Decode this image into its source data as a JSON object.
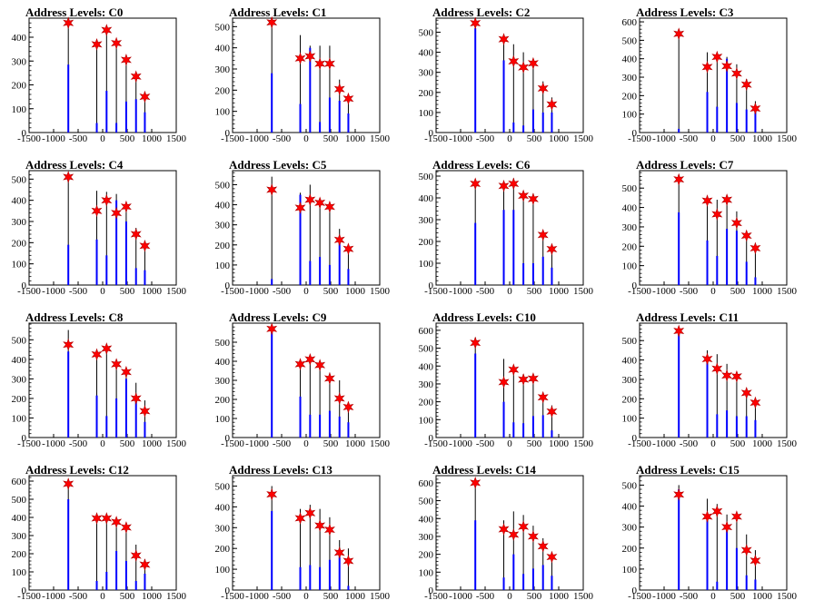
{
  "chart_data": [
    {
      "type": "bar",
      "title": "Address Levels: C0",
      "xlim": [
        -1500,
        1500
      ],
      "ylim": [
        0,
        480
      ],
      "x_ticks": [
        -1500,
        -1000,
        -500,
        0,
        500,
        1000,
        1500
      ],
      "y_ticks": [
        0,
        100,
        200,
        300,
        400
      ],
      "peaks": [
        -700,
        -120,
        80,
        280,
        480,
        680,
        860
      ],
      "bars": [
        [
          -700,
          460,
          285
        ],
        [
          -120,
          380,
          40
        ],
        [
          80,
          430,
          175
        ],
        [
          280,
          370,
          40
        ],
        [
          480,
          310,
          130
        ],
        [
          680,
          245,
          140
        ],
        [
          860,
          160,
          85
        ]
      ],
      "markers": [
        460,
        370,
        430,
        375,
        305,
        235,
        150
      ]
    },
    {
      "type": "bar",
      "title": "Address Levels: C1",
      "xlim": [
        -1500,
        1500
      ],
      "ylim": [
        0,
        540
      ],
      "x_ticks": [
        -1500,
        -1000,
        -500,
        0,
        500,
        1000,
        1500
      ],
      "y_ticks": [
        0,
        100,
        200,
        300,
        400,
        500
      ],
      "peaks": [
        -700,
        -120,
        80,
        280,
        480,
        680,
        860
      ],
      "bars": [
        [
          -700,
          520,
          280
        ],
        [
          -120,
          460,
          135
        ],
        [
          80,
          410,
          400
        ],
        [
          280,
          410,
          50
        ],
        [
          480,
          410,
          165
        ],
        [
          680,
          250,
          150
        ],
        [
          860,
          170,
          90
        ]
      ],
      "markers": [
        520,
        350,
        360,
        325,
        325,
        205,
        160
      ]
    },
    {
      "type": "bar",
      "title": "Address Levels: C2",
      "xlim": [
        -1500,
        1500
      ],
      "ylim": [
        0,
        570
      ],
      "x_ticks": [
        -1500,
        -1000,
        -500,
        0,
        500,
        1000,
        1500
      ],
      "y_ticks": [
        0,
        100,
        200,
        300,
        400,
        500
      ],
      "peaks": [
        -700,
        -120,
        80,
        280,
        480,
        680,
        860
      ],
      "bars": [
        [
          -700,
          545,
          520
        ],
        [
          -120,
          460,
          360
        ],
        [
          80,
          440,
          50
        ],
        [
          280,
          400,
          35
        ],
        [
          480,
          350,
          115
        ],
        [
          680,
          255,
          100
        ],
        [
          860,
          175,
          100
        ]
      ],
      "markers": [
        545,
        465,
        355,
        325,
        345,
        220,
        140
      ]
    },
    {
      "type": "bar",
      "title": "Address Levels: C3",
      "xlim": [
        -1500,
        1500
      ],
      "ylim": [
        0,
        620
      ],
      "x_ticks": [
        -1500,
        -1000,
        -500,
        0,
        500,
        1000,
        1500
      ],
      "y_ticks": [
        0,
        100,
        200,
        300,
        400,
        500,
        600
      ],
      "peaks": [
        -700,
        -120,
        80,
        280,
        480,
        680,
        860
      ],
      "bars": [
        [
          -700,
          560,
          20
        ],
        [
          -120,
          435,
          220
        ],
        [
          80,
          430,
          140
        ],
        [
          280,
          410,
          400
        ],
        [
          480,
          370,
          160
        ],
        [
          680,
          290,
          125
        ],
        [
          860,
          170,
          110
        ]
      ],
      "markers": [
        535,
        355,
        410,
        360,
        320,
        260,
        130
      ]
    },
    {
      "type": "bar",
      "title": "Address Levels: C4",
      "xlim": [
        -1500,
        1500
      ],
      "ylim": [
        0,
        540
      ],
      "x_ticks": [
        -1500,
        -1000,
        -500,
        0,
        500,
        1000,
        1500
      ],
      "y_ticks": [
        0,
        100,
        200,
        300,
        400,
        500
      ],
      "peaks": [
        -700,
        -120,
        80,
        280,
        480,
        680,
        860
      ],
      "bars": [
        [
          -700,
          525,
          190
        ],
        [
          -120,
          445,
          215
        ],
        [
          80,
          440,
          140
        ],
        [
          280,
          430,
          400
        ],
        [
          480,
          370,
          300
        ],
        [
          680,
          270,
          80
        ],
        [
          860,
          195,
          70
        ]
      ],
      "markers": [
        510,
        350,
        400,
        340,
        370,
        240,
        185
      ]
    },
    {
      "type": "bar",
      "title": "Address Levels: C5",
      "xlim": [
        -1500,
        1500
      ],
      "ylim": [
        0,
        570
      ],
      "x_ticks": [
        -1500,
        -1000,
        -500,
        0,
        500,
        1000,
        1500
      ],
      "y_ticks": [
        0,
        100,
        200,
        300,
        400,
        500
      ],
      "peaks": [
        -700,
        -120,
        80,
        280,
        480,
        680,
        860
      ],
      "bars": [
        [
          -700,
          540,
          30
        ],
        [
          -120,
          460,
          450
        ],
        [
          80,
          500,
          120
        ],
        [
          280,
          420,
          140
        ],
        [
          480,
          400,
          100
        ],
        [
          680,
          280,
          210
        ],
        [
          860,
          200,
          80
        ]
      ],
      "markers": [
        475,
        385,
        425,
        410,
        390,
        225,
        180
      ]
    },
    {
      "type": "bar",
      "title": "Address Levels: C6",
      "xlim": [
        -1500,
        1500
      ],
      "ylim": [
        0,
        525
      ],
      "x_ticks": [
        -1500,
        -1000,
        -500,
        0,
        500,
        1000,
        1500
      ],
      "y_ticks": [
        0,
        100,
        200,
        300,
        400,
        500
      ],
      "peaks": [
        -700,
        -120,
        80,
        280,
        480,
        680,
        860
      ],
      "bars": [
        [
          -700,
          485,
          285
        ],
        [
          -120,
          460,
          345
        ],
        [
          80,
          490,
          345
        ],
        [
          280,
          430,
          100
        ],
        [
          480,
          420,
          100
        ],
        [
          680,
          250,
          130
        ],
        [
          860,
          175,
          80
        ]
      ],
      "markers": [
        465,
        455,
        465,
        410,
        395,
        230,
        165
      ]
    },
    {
      "type": "bar",
      "title": "Address Levels: C7",
      "xlim": [
        -1500,
        1500
      ],
      "ylim": [
        0,
        590
      ],
      "x_ticks": [
        -1500,
        -1000,
        -500,
        0,
        500,
        1000,
        1500
      ],
      "y_ticks": [
        0,
        100,
        200,
        300,
        400,
        500
      ],
      "peaks": [
        -700,
        -120,
        80,
        280,
        480,
        680,
        860
      ],
      "bars": [
        [
          -700,
          555,
          375
        ],
        [
          -120,
          445,
          230
        ],
        [
          80,
          440,
          150
        ],
        [
          280,
          450,
          290
        ],
        [
          480,
          380,
          280
        ],
        [
          680,
          265,
          120
        ],
        [
          860,
          200,
          40
        ]
      ],
      "markers": [
        545,
        435,
        365,
        440,
        320,
        255,
        190
      ]
    },
    {
      "type": "bar",
      "title": "Address Levels: C8",
      "xlim": [
        -1500,
        1500
      ],
      "ylim": [
        0,
        585
      ],
      "x_ticks": [
        -1500,
        -1000,
        -500,
        0,
        500,
        1000,
        1500
      ],
      "y_ticks": [
        0,
        100,
        200,
        300,
        400,
        500
      ],
      "peaks": [
        -700,
        -120,
        80,
        280,
        480,
        680,
        860
      ],
      "bars": [
        [
          -700,
          550,
          440
        ],
        [
          -120,
          445,
          215
        ],
        [
          80,
          470,
          110
        ],
        [
          280,
          400,
          200
        ],
        [
          480,
          350,
          300
        ],
        [
          680,
          280,
          200
        ],
        [
          860,
          190,
          80
        ]
      ],
      "markers": [
        475,
        425,
        455,
        375,
        335,
        200,
        135
      ]
    },
    {
      "type": "bar",
      "title": "Address Levels: C9",
      "xlim": [
        -1500,
        1500
      ],
      "ylim": [
        0,
        600
      ],
      "x_ticks": [
        -1500,
        -1000,
        -500,
        0,
        500,
        1000,
        1500
      ],
      "y_ticks": [
        0,
        100,
        200,
        300,
        400,
        500
      ],
      "peaks": [
        -700,
        -120,
        80,
        280,
        480,
        680,
        860
      ],
      "bars": [
        [
          -700,
          570,
          560
        ],
        [
          -120,
          405,
          215
        ],
        [
          80,
          420,
          120
        ],
        [
          280,
          400,
          120
        ],
        [
          480,
          340,
          140
        ],
        [
          680,
          300,
          110
        ],
        [
          860,
          180,
          80
        ]
      ],
      "markers": [
        570,
        385,
        410,
        380,
        310,
        205,
        160
      ]
    },
    {
      "type": "bar",
      "title": "Address Levels: C10",
      "xlim": [
        -1500,
        1500
      ],
      "ylim": [
        0,
        640
      ],
      "x_ticks": [
        -1500,
        -1000,
        -500,
        0,
        500,
        1000,
        1500
      ],
      "y_ticks": [
        0,
        100,
        200,
        300,
        400,
        500,
        600
      ],
      "peaks": [
        -700,
        -120,
        80,
        280,
        480,
        680,
        860
      ],
      "bars": [
        [
          -700,
          560,
          470
        ],
        [
          -120,
          440,
          200
        ],
        [
          80,
          400,
          85
        ],
        [
          280,
          355,
          80
        ],
        [
          480,
          340,
          120
        ],
        [
          680,
          250,
          125
        ],
        [
          860,
          180,
          40
        ]
      ],
      "markers": [
        530,
        310,
        380,
        325,
        330,
        225,
        145
      ]
    },
    {
      "type": "bar",
      "title": "Address Levels: C11",
      "xlim": [
        -1500,
        1500
      ],
      "ylim": [
        0,
        590
      ],
      "x_ticks": [
        -1500,
        -1000,
        -500,
        0,
        500,
        1000,
        1500
      ],
      "y_ticks": [
        0,
        100,
        200,
        300,
        400,
        500
      ],
      "peaks": [
        -700,
        -120,
        80,
        280,
        480,
        680,
        860
      ],
      "bars": [
        [
          -700,
          560,
          540
        ],
        [
          -120,
          450,
          390
        ],
        [
          80,
          430,
          120
        ],
        [
          280,
          380,
          140
        ],
        [
          480,
          330,
          110
        ],
        [
          680,
          255,
          110
        ],
        [
          860,
          180,
          90
        ]
      ],
      "markers": [
        550,
        405,
        355,
        320,
        315,
        230,
        180
      ]
    },
    {
      "type": "bar",
      "title": "Address Levels: C12",
      "xlim": [
        -1500,
        1500
      ],
      "ylim": [
        0,
        630
      ],
      "x_ticks": [
        -1500,
        -1000,
        -500,
        0,
        500,
        1000,
        1500
      ],
      "y_ticks": [
        0,
        100,
        200,
        300,
        400,
        500,
        600
      ],
      "peaks": [
        -700,
        -120,
        80,
        280,
        480,
        680,
        860
      ],
      "bars": [
        [
          -700,
          590,
          500
        ],
        [
          -120,
          410,
          50
        ],
        [
          80,
          410,
          100
        ],
        [
          280,
          385,
          215
        ],
        [
          480,
          360,
          160
        ],
        [
          680,
          250,
          50
        ],
        [
          860,
          170,
          90
        ]
      ],
      "markers": [
        585,
        395,
        395,
        375,
        345,
        190,
        140
      ]
    },
    {
      "type": "bar",
      "title": "Address Levels: C13",
      "xlim": [
        -1500,
        1500
      ],
      "ylim": [
        0,
        550
      ],
      "x_ticks": [
        -1500,
        -1000,
        -500,
        0,
        500,
        1000,
        1500
      ],
      "y_ticks": [
        0,
        100,
        200,
        300,
        400,
        500
      ],
      "peaks": [
        -700,
        -120,
        80,
        280,
        480,
        680,
        860
      ],
      "bars": [
        [
          -700,
          500,
          380
        ],
        [
          -120,
          390,
          110
        ],
        [
          80,
          410,
          120
        ],
        [
          280,
          390,
          110
        ],
        [
          480,
          350,
          145
        ],
        [
          680,
          240,
          160
        ],
        [
          860,
          200,
          20
        ]
      ],
      "markers": [
        460,
        345,
        370,
        310,
        290,
        180,
        140
      ]
    },
    {
      "type": "bar",
      "title": "Address Levels: C14",
      "xlim": [
        -1500,
        1500
      ],
      "ylim": [
        0,
        640
      ],
      "x_ticks": [
        -1500,
        -1000,
        -500,
        0,
        500,
        1000,
        1500
      ],
      "y_ticks": [
        0,
        100,
        200,
        300,
        400,
        500,
        600
      ],
      "peaks": [
        -700,
        -120,
        80,
        280,
        480,
        680,
        860
      ],
      "bars": [
        [
          -700,
          615,
          390
        ],
        [
          -120,
          390,
          70
        ],
        [
          80,
          440,
          200
        ],
        [
          280,
          420,
          90
        ],
        [
          480,
          360,
          120
        ],
        [
          680,
          290,
          140
        ],
        [
          860,
          200,
          80
        ]
      ],
      "markers": [
        600,
        340,
        310,
        355,
        300,
        245,
        185
      ]
    },
    {
      "type": "bar",
      "title": "Address Levels: C15",
      "xlim": [
        -1500,
        1500
      ],
      "ylim": [
        0,
        545
      ],
      "x_ticks": [
        -1500,
        -1000,
        -500,
        0,
        500,
        1000,
        1500
      ],
      "y_ticks": [
        0,
        100,
        200,
        300,
        400,
        500
      ],
      "peaks": [
        -700,
        -120,
        80,
        280,
        480,
        680,
        860
      ],
      "bars": [
        [
          -700,
          500,
          480
        ],
        [
          -120,
          435,
          350
        ],
        [
          80,
          410,
          40
        ],
        [
          280,
          360,
          300
        ],
        [
          480,
          345,
          200
        ],
        [
          680,
          265,
          70
        ],
        [
          860,
          190,
          50
        ]
      ],
      "markers": [
        455,
        350,
        375,
        300,
        350,
        190,
        140
      ]
    }
  ],
  "colors": {
    "bar": "#0000ff",
    "spike": "#000000",
    "marker": "#ff0000",
    "axis": "#000000"
  }
}
